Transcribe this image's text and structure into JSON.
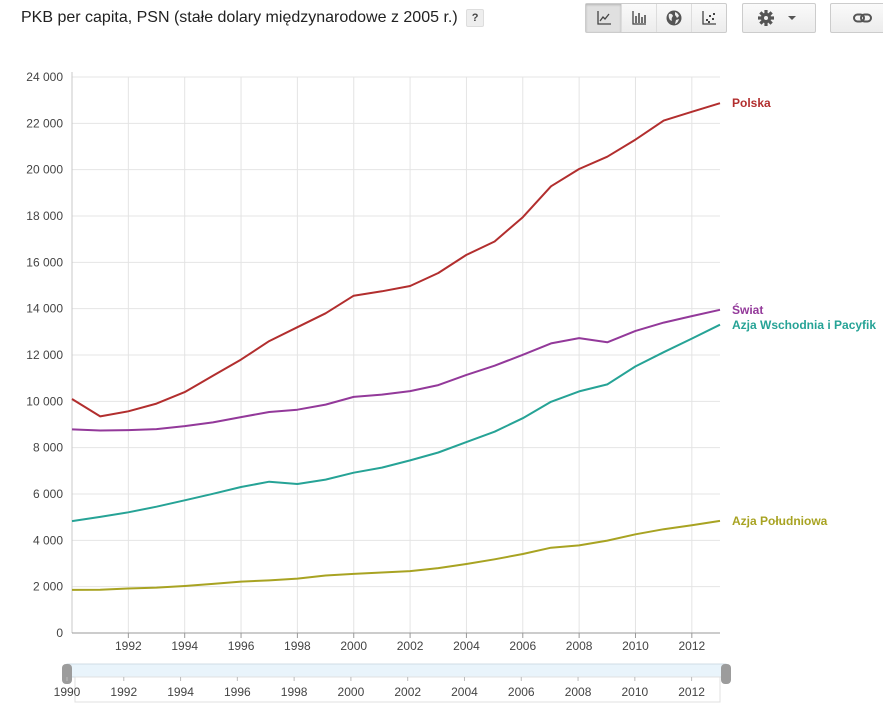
{
  "title": "PKB per capita, PSN (stałe dolary międzynarodowe z 2005 r.)",
  "help_label": "?",
  "toolbar": {
    "views": [
      {
        "name": "line-chart",
        "icon": "line-chart-icon",
        "active": true
      },
      {
        "name": "bar-chart",
        "icon": "bar-chart-icon",
        "active": false
      },
      {
        "name": "map",
        "icon": "globe-icon",
        "active": false
      },
      {
        "name": "scatter",
        "icon": "scatter-icon",
        "active": false
      }
    ],
    "settings_icon": "gear-icon",
    "link_icon": "link-icon"
  },
  "chart_data": {
    "type": "line",
    "x": [
      1990,
      1991,
      1992,
      1993,
      1994,
      1995,
      1996,
      1997,
      1998,
      1999,
      2000,
      2001,
      2002,
      2003,
      2004,
      2005,
      2006,
      2007,
      2008,
      2009,
      2010,
      2011,
      2012,
      2013
    ],
    "xticks": [
      "1992",
      "1994",
      "1996",
      "1998",
      "2000",
      "2002",
      "2004",
      "2006",
      "2008",
      "2010",
      "2012"
    ],
    "ylim": [
      0,
      24000
    ],
    "yticks": [
      "0",
      "2 000",
      "4 000",
      "6 000",
      "8 000",
      "10 000",
      "12 000",
      "14 000",
      "16 000",
      "18 000",
      "20 000",
      "22 000",
      "24 000"
    ],
    "grid": true,
    "series": [
      {
        "name": "Polska",
        "color": "#b22e2e",
        "values": [
          10100,
          9350,
          9570,
          9900,
          10400,
          11100,
          11800,
          12600,
          13200,
          13800,
          14560,
          14750,
          14980,
          15540,
          16320,
          16900,
          17950,
          19280,
          20030,
          20560,
          21300,
          22120,
          22500,
          22870
        ]
      },
      {
        "name": "Świat",
        "color": "#93399a",
        "values": [
          8790,
          8740,
          8760,
          8800,
          8930,
          9090,
          9320,
          9540,
          9640,
          9860,
          10190,
          10290,
          10440,
          10700,
          11140,
          11540,
          12010,
          12500,
          12730,
          12550,
          13040,
          13400,
          13680,
          13950
        ]
      },
      {
        "name": "Azja Wschodnia i Pacyfik",
        "color": "#26a396",
        "values": [
          4830,
          5010,
          5210,
          5450,
          5730,
          6010,
          6300,
          6530,
          6430,
          6620,
          6920,
          7140,
          7450,
          7790,
          8240,
          8690,
          9270,
          9980,
          10430,
          10730,
          11510,
          12120,
          12710,
          13310
        ]
      },
      {
        "name": "Azja Południowa",
        "color": "#a8a322",
        "values": [
          1860,
          1870,
          1920,
          1960,
          2030,
          2120,
          2220,
          2270,
          2350,
          2480,
          2550,
          2610,
          2670,
          2800,
          2980,
          3180,
          3410,
          3680,
          3780,
          3990,
          4260,
          4480,
          4650,
          4840
        ]
      }
    ]
  },
  "timeline": {
    "ticks": [
      "1990",
      "1992",
      "1994",
      "1996",
      "1998",
      "2000",
      "2002",
      "2004",
      "2006",
      "2008",
      "2010",
      "2012"
    ]
  }
}
